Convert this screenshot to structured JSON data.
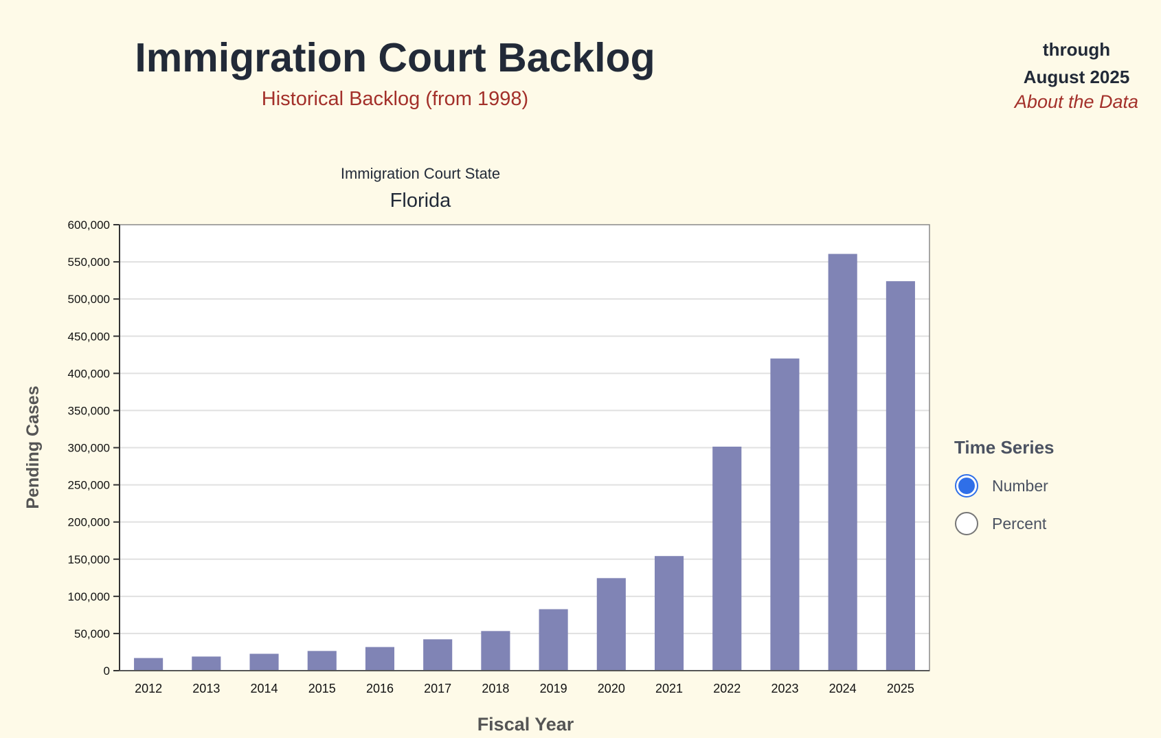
{
  "header": {
    "title": "Immigration Court Backlog",
    "subtitle": "Historical Backlog (from 1998)",
    "through_line1": "through",
    "through_line2": "August 2025",
    "about_link": "About the Data"
  },
  "chart_header": {
    "label": "Immigration Court State",
    "value": "Florida"
  },
  "legend": {
    "title": "Time Series",
    "options": [
      {
        "label": "Number",
        "selected": true
      },
      {
        "label": "Percent",
        "selected": false
      }
    ]
  },
  "colors": {
    "bar": "#8084b5",
    "accent": "#a3302a",
    "radio": "#2f6fe8"
  },
  "chart_data": {
    "type": "bar",
    "xlabel": "Fiscal Year",
    "ylabel": "Pending Cases",
    "ylim": [
      0,
      600000
    ],
    "yticks": [
      "0",
      "50,000",
      "100,000",
      "150,000",
      "200,000",
      "250,000",
      "300,000",
      "350,000",
      "400,000",
      "450,000",
      "500,000",
      "550,000",
      "600,000"
    ],
    "grid": true,
    "categories": [
      "2012",
      "2013",
      "2014",
      "2015",
      "2016",
      "2017",
      "2018",
      "2019",
      "2020",
      "2021",
      "2022",
      "2023",
      "2024",
      "2025"
    ],
    "values": [
      17000,
      19000,
      22700,
      26500,
      31800,
      42200,
      53300,
      82700,
      124500,
      154200,
      301400,
      420000,
      560700,
      524000
    ]
  }
}
